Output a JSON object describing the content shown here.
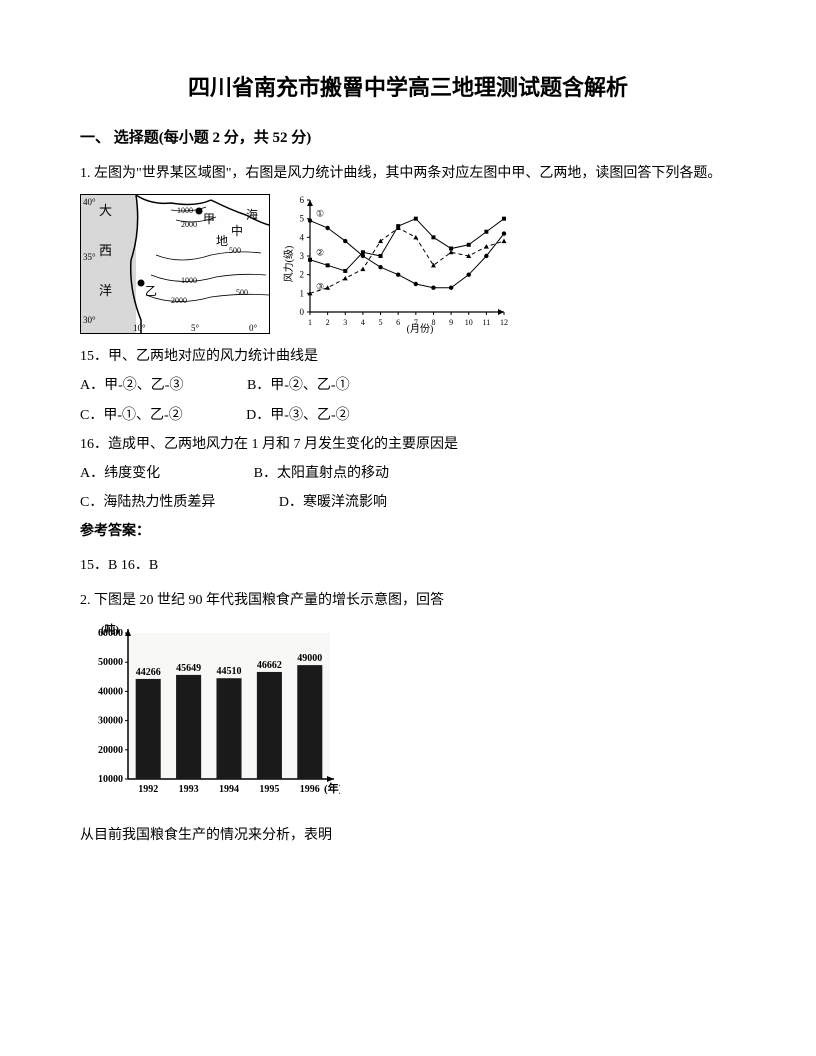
{
  "title": "四川省南充市搬罾中学高三地理测试题含解析",
  "section1": {
    "header": "一、 选择题(每小题 2 分，共 52 分)"
  },
  "q1": {
    "intro": "1. 左图为\"世界某区域图\"，右图是风力统计曲线，其中两条对应左图中甲、乙两地，读图回答下列各题。",
    "map": {
      "labels": {
        "da": "大",
        "xi": "西",
        "yang": "洋",
        "jia": "甲",
        "hai": "海",
        "zhong": "中",
        "di": "地",
        "yi": "乙"
      },
      "lat40": "40°",
      "lat35": "35°",
      "lat30": "30°",
      "lon10": "10°",
      "lon5": "5°",
      "lon0": "0°",
      "contours": [
        "1000",
        "2000",
        "500",
        "1000",
        "2000",
        "500"
      ]
    },
    "chart": {
      "ylabel": "风力(级)",
      "xlabel": "(月份)",
      "ymax": 6,
      "ymin": 0,
      "xticks": [
        1,
        2,
        3,
        4,
        5,
        6,
        7,
        8,
        9,
        10,
        11,
        12
      ],
      "yticks": [
        0,
        1,
        2,
        3,
        4,
        5,
        6
      ],
      "series": [
        {
          "id": "①",
          "marker": "circle",
          "style": "solid",
          "data": [
            4.9,
            4.5,
            3.8,
            3.0,
            2.4,
            2.0,
            1.5,
            1.3,
            1.3,
            2.0,
            3.0,
            4.2
          ]
        },
        {
          "id": "②",
          "marker": "square",
          "style": "solid",
          "data": [
            2.8,
            2.5,
            2.2,
            3.2,
            3.0,
            4.6,
            5.0,
            4.0,
            3.4,
            3.6,
            4.3,
            5.0
          ]
        },
        {
          "id": "③",
          "marker": "triangle",
          "style": "dashed",
          "data": [
            1.0,
            1.3,
            1.8,
            2.3,
            3.8,
            4.5,
            4.0,
            2.5,
            3.2,
            3.0,
            3.5,
            3.8
          ]
        }
      ],
      "legend_labels": [
        "①",
        "②",
        "③"
      ],
      "colors": {
        "axis": "#000000",
        "grid": "#cccccc"
      }
    },
    "sub15": "15．甲、乙两地对应的风力统计曲线是",
    "opts15": {
      "A": "A．甲-②、乙-③",
      "B": "B．甲-②、乙-①",
      "C": "C．甲-①、乙-②",
      "D": "D．甲-③、乙-②"
    },
    "sub16": "16．造成甲、乙两地风力在 1 月和 7 月发生变化的主要原因是",
    "opts16": {
      "A": "A．纬度变化",
      "B": "B．太阳直射点的移动",
      "C": "C．海陆热力性质差异",
      "D": "D．寒暖洋流影响"
    },
    "answer_label": "参考答案：",
    "answers": "15．B        16．B"
  },
  "q2": {
    "intro": "2. 下图是 20 世纪 90 年代我国粮食产量的增长示意图，回答",
    "chart": {
      "ylabel": "(吨)",
      "xlabel": "(年)",
      "categories": [
        "1992",
        "1993",
        "1994",
        "1995",
        "1996"
      ],
      "values": [
        44266,
        45649,
        44510,
        46662,
        49000
      ],
      "ymax": 60000,
      "ymin": 10000,
      "yticks": [
        10000,
        20000,
        30000,
        40000,
        50000,
        60000
      ],
      "bar_color": "#1a1a1a",
      "axis_color": "#000000",
      "bg_color": "#f8f8f6"
    },
    "followup": "从目前我国粮食生产的情况来分析，表明"
  }
}
